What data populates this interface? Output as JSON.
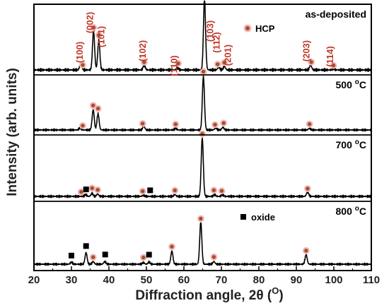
{
  "chart_data": {
    "type": "line",
    "xlabel_main": "Diffraction angle, 2",
    "xlabel_theta": "θ",
    "xlabel_open": " (",
    "xlabel_unit": "O",
    "xlabel_close": ")",
    "ylabel": "Intensity (arb. units)",
    "xlim": [
      20,
      110
    ],
    "x_ticks": [
      "20",
      "30",
      "40",
      "50",
      "60",
      "70",
      "80",
      "90",
      "100",
      "110"
    ],
    "colors": {
      "hcp_marker": "#a0522d",
      "hcp_marker_edge": "#f4b6b6",
      "oxide_marker": "#000000",
      "hkl_text": "#c0392b",
      "trace": "#000000"
    },
    "legend": {
      "hcp": "HCP",
      "oxide": "oxide"
    },
    "hkl_labels": [
      {
        "text": "(100)",
        "x": 33.0
      },
      {
        "text": "(002)",
        "x": 35.8
      },
      {
        "text": "(101)",
        "x": 38.8
      },
      {
        "text": "(102)",
        "x": 49.8
      },
      {
        "text": "(110)",
        "x": 58.2
      },
      {
        "text": "(103)",
        "x": 67.8
      },
      {
        "text": "(112)",
        "x": 69.5
      },
      {
        "text": "(201)",
        "x": 72.5
      },
      {
        "text": "(203)",
        "x": 93.5
      },
      {
        "text": "(114)",
        "x": 99.8
      }
    ],
    "panels": [
      {
        "label_main": "as-deposited",
        "label_sup": "",
        "label_unit": "",
        "peaks": [
          {
            "x": 32.5,
            "h": 0.1
          },
          {
            "x": 35.9,
            "h": 0.55
          },
          {
            "x": 37.3,
            "h": 0.42
          },
          {
            "x": 49.4,
            "h": 0.07
          },
          {
            "x": 58.3,
            "h": 0.03
          },
          {
            "x": 65.5,
            "h": 1.0
          },
          {
            "x": 69.3,
            "h": 0.04
          },
          {
            "x": 70.8,
            "h": 0.05
          },
          {
            "x": 93.8,
            "h": 0.07
          },
          {
            "x": 99.9,
            "h": 0.02
          }
        ],
        "hcp_markers": [
          33.0,
          35.9,
          37.3,
          49.4,
          58.5,
          65.5,
          69.0,
          70.8,
          94.0,
          99.9
        ],
        "oxide_markers": []
      },
      {
        "label_main": "500 ",
        "label_sup": "o",
        "label_unit": "C",
        "peaks": [
          {
            "x": 32.3,
            "h": 0.04
          },
          {
            "x": 35.8,
            "h": 0.38
          },
          {
            "x": 37.1,
            "h": 0.3
          },
          {
            "x": 49.3,
            "h": 0.07
          },
          {
            "x": 57.8,
            "h": 0.03
          },
          {
            "x": 65.2,
            "h": 1.0
          },
          {
            "x": 68.5,
            "h": 0.04
          },
          {
            "x": 70.4,
            "h": 0.05
          },
          {
            "x": 93.5,
            "h": 0.03
          }
        ],
        "hcp_markers": [
          33.0,
          35.8,
          37.1,
          49.0,
          57.8,
          65.2,
          68.3,
          70.6,
          93.5
        ],
        "oxide_markers": []
      },
      {
        "label_main": "700 ",
        "label_sup": "o",
        "label_unit": "C",
        "peaks": [
          {
            "x": 33.8,
            "h": 0.03
          },
          {
            "x": 35.5,
            "h": 0.05
          },
          {
            "x": 37.0,
            "h": 0.04
          },
          {
            "x": 49.2,
            "h": 0.02
          },
          {
            "x": 57.6,
            "h": 0.03
          },
          {
            "x": 64.9,
            "h": 1.0
          },
          {
            "x": 68.2,
            "h": 0.03
          },
          {
            "x": 70.3,
            "h": 0.03
          },
          {
            "x": 93.0,
            "h": 0.08
          }
        ],
        "hcp_markers": [
          32.6,
          35.5,
          37.0,
          49.0,
          57.6,
          64.9,
          68.0,
          70.1,
          93.0
        ],
        "oxide_markers": [
          33.9,
          51.0
        ]
      },
      {
        "label_main": "800 ",
        "label_sup": "o",
        "label_unit": "C",
        "peaks": [
          {
            "x": 30.0,
            "h": 0.04
          },
          {
            "x": 33.9,
            "h": 0.22
          },
          {
            "x": 35.8,
            "h": 0.05
          },
          {
            "x": 38.9,
            "h": 0.05
          },
          {
            "x": 49.2,
            "h": 0.03
          },
          {
            "x": 50.7,
            "h": 0.04
          },
          {
            "x": 56.8,
            "h": 0.25
          },
          {
            "x": 64.5,
            "h": 0.8
          },
          {
            "x": 68.0,
            "h": 0.05
          },
          {
            "x": 92.6,
            "h": 0.18
          }
        ],
        "hcp_markers": [
          35.8,
          49.2,
          56.8,
          64.5,
          68.0,
          92.6
        ],
        "oxide_markers": [
          30.0,
          33.9,
          39.0,
          50.7
        ]
      }
    ]
  }
}
